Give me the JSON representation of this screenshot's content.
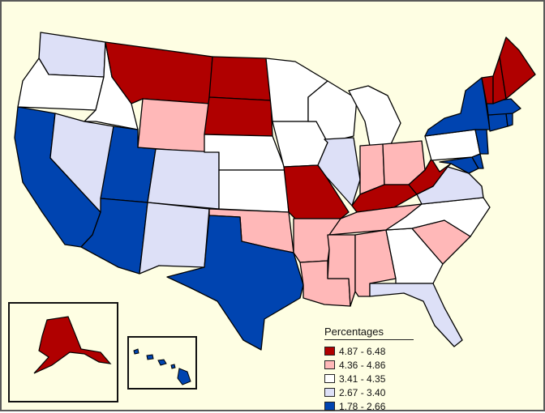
{
  "legend": {
    "title": "Percentages",
    "classes": [
      {
        "label": "4.87 - 6.48",
        "color": "#b00000"
      },
      {
        "label": "4.36 - 4.86",
        "color": "#ffb8b8"
      },
      {
        "label": "3.41 - 4.35",
        "color": "#ffffff"
      },
      {
        "label": "2.67 - 3.40",
        "color": "#dde0f7"
      },
      {
        "label": "1.78 - 2.66",
        "color": "#0044b0"
      }
    ]
  },
  "colors": {
    "background": "#fefee3",
    "frame": "#5a5a5a",
    "state_border": "#000000"
  },
  "states": {
    "AK": 0,
    "HI": 4,
    "WA": 3,
    "OR": 2,
    "CA": 4,
    "ID": 2,
    "NV": 3,
    "AZ": 4,
    "UT": 4,
    "MT": 0,
    "WY": 1,
    "CO": 3,
    "NM": 3,
    "ND": 0,
    "SD": 0,
    "NE": 2,
    "KS": 2,
    "OK": 1,
    "TX": 4,
    "MN": 2,
    "IA": 2,
    "MO": 0,
    "AR": 1,
    "LA": 1,
    "WI": 2,
    "IL": 3,
    "MI": 2,
    "IN": 1,
    "OH": 1,
    "KY": 0,
    "TN": 1,
    "MS": 1,
    "AL": 1,
    "GA": 2,
    "FL": 3,
    "SC": 1,
    "NC": 2,
    "VA": 3,
    "WV": 0,
    "MD": 4,
    "DE": 4,
    "PA": 2,
    "NJ": 4,
    "NY": 4,
    "CT": 4,
    "RI": 4,
    "MA": 4,
    "VT": 0,
    "NH": 0,
    "ME": 0
  }
}
